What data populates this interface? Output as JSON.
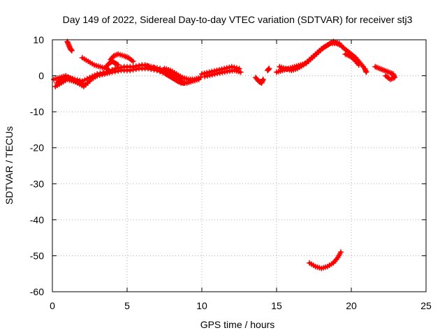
{
  "chart_data": {
    "type": "scatter",
    "title": "Day 149 of 2022, Sidereal Day-to-day VTEC variation (SDTVAR) for receiver stj3",
    "xlabel": "GPS time / hours",
    "ylabel": "SDTVAR / TECUs",
    "xlim": [
      0,
      25
    ],
    "ylim": [
      -60,
      10
    ],
    "xticks": [
      0,
      5,
      10,
      15,
      20,
      25
    ],
    "yticks": [
      10,
      0,
      -10,
      -20,
      -30,
      -40,
      -50,
      -60
    ],
    "grid": true,
    "marker": "+",
    "color": "#ff0000",
    "segments": [
      {
        "points": [
          [
            0.2,
            -3
          ],
          [
            0.6,
            -2
          ],
          [
            1.0,
            -1
          ],
          [
            1.4,
            -1.5
          ],
          [
            1.8,
            -2
          ],
          [
            2.2,
            -2.5
          ],
          [
            2.6,
            -1
          ],
          [
            3.0,
            0
          ],
          [
            3.5,
            0.5
          ],
          [
            4.0,
            1
          ],
          [
            4.6,
            1.5
          ],
          [
            5.2,
            1.5
          ],
          [
            5.8,
            2
          ],
          [
            6.4,
            2
          ],
          [
            7.0,
            1.5
          ],
          [
            7.6,
            0.5
          ],
          [
            8.0,
            -0.5
          ],
          [
            8.4,
            -1.5
          ],
          [
            8.8,
            -2
          ]
        ]
      },
      {
        "points": [
          [
            0.3,
            -2
          ],
          [
            0.7,
            -1
          ],
          [
            1.1,
            -0.5
          ],
          [
            1.5,
            -1
          ],
          [
            2.0,
            -1.5
          ],
          [
            2.5,
            -0.5
          ],
          [
            3.0,
            0.5
          ],
          [
            3.6,
            1
          ],
          [
            4.2,
            2
          ],
          [
            4.8,
            2.5
          ],
          [
            5.4,
            2.5
          ],
          [
            6.0,
            3
          ],
          [
            6.6,
            2.5
          ],
          [
            7.2,
            2
          ],
          [
            7.8,
            1
          ],
          [
            8.2,
            0
          ],
          [
            8.6,
            -1
          ]
        ]
      },
      {
        "points": [
          [
            0.1,
            -1
          ],
          [
            0.5,
            -0.5
          ],
          [
            0.9,
            0
          ],
          [
            1.3,
            -1
          ],
          [
            1.7,
            -2
          ],
          [
            2.1,
            -3
          ],
          [
            2.5,
            -1.5
          ]
        ]
      },
      {
        "points": [
          [
            1.0,
            9.5
          ],
          [
            1.1,
            8.5
          ],
          [
            1.2,
            7.5
          ],
          [
            1.3,
            7
          ]
        ]
      },
      {
        "points": [
          [
            2.0,
            5
          ],
          [
            2.4,
            4
          ],
          [
            2.8,
            3
          ],
          [
            3.2,
            2.5
          ],
          [
            3.6,
            2
          ],
          [
            3.8,
            1.5
          ]
        ]
      },
      {
        "points": [
          [
            3.9,
            4.5
          ],
          [
            4.1,
            5.5
          ],
          [
            4.4,
            6
          ],
          [
            4.8,
            5.5
          ],
          [
            5.1,
            5
          ],
          [
            5.4,
            4
          ]
        ]
      },
      {
        "points": [
          [
            3.6,
            2.5
          ],
          [
            3.8,
            3.5
          ],
          [
            4.0,
            4
          ],
          [
            4.2,
            3.5
          ],
          [
            4.4,
            3
          ]
        ]
      },
      {
        "points": [
          [
            6.2,
            3
          ],
          [
            6.6,
            2.5
          ],
          [
            7.0,
            2
          ],
          [
            7.4,
            1
          ],
          [
            7.8,
            0
          ],
          [
            8.2,
            -1
          ],
          [
            8.6,
            -2
          ],
          [
            9.0,
            -2
          ],
          [
            9.4,
            -1.5
          ],
          [
            9.8,
            -1
          ]
        ]
      },
      {
        "points": [
          [
            7.5,
            2
          ],
          [
            7.9,
            1.5
          ],
          [
            8.3,
            0.5
          ],
          [
            8.7,
            -0.5
          ],
          [
            9.1,
            -1
          ],
          [
            9.5,
            -1
          ],
          [
            9.9,
            -0.5
          ]
        ]
      },
      {
        "points": [
          [
            10.0,
            0.5
          ],
          [
            10.5,
            1
          ],
          [
            11.0,
            1.5
          ],
          [
            11.5,
            2
          ],
          [
            12.0,
            2.5
          ],
          [
            12.5,
            2
          ]
        ]
      },
      {
        "points": [
          [
            10.2,
            -0.2
          ],
          [
            10.7,
            0.3
          ],
          [
            11.2,
            0.8
          ],
          [
            11.7,
            1.2
          ],
          [
            12.2,
            1.5
          ],
          [
            12.6,
            1
          ]
        ]
      },
      {
        "points": [
          [
            13.6,
            -0.5
          ],
          [
            13.8,
            -1.5
          ],
          [
            14.0,
            -2
          ],
          [
            14.1,
            -1
          ]
        ]
      },
      {
        "points": [
          [
            14.4,
            1.5
          ],
          [
            14.5,
            2
          ]
        ]
      },
      {
        "points": [
          [
            15.0,
            1
          ],
          [
            15.4,
            1.5
          ],
          [
            15.8,
            2
          ],
          [
            16.2,
            2.5
          ],
          [
            16.6,
            3
          ],
          [
            17.0,
            3.5
          ],
          [
            17.4,
            5
          ],
          [
            17.8,
            6.5
          ],
          [
            18.2,
            8
          ],
          [
            18.6,
            9
          ],
          [
            19.0,
            9
          ],
          [
            19.3,
            8.5
          ]
        ]
      },
      {
        "points": [
          [
            15.2,
            2.5
          ],
          [
            15.6,
            2
          ],
          [
            16.0,
            1.5
          ],
          [
            16.4,
            2
          ],
          [
            16.8,
            3
          ],
          [
            17.2,
            4.5
          ],
          [
            17.6,
            6
          ],
          [
            18.0,
            7.5
          ],
          [
            18.4,
            8.5
          ],
          [
            18.8,
            9.5
          ],
          [
            19.2,
            9
          ]
        ]
      },
      {
        "points": [
          [
            19.4,
            8
          ],
          [
            19.7,
            7
          ],
          [
            20.0,
            6
          ],
          [
            20.3,
            5
          ],
          [
            20.6,
            3.5
          ],
          [
            20.9,
            2
          ],
          [
            21.0,
            1
          ]
        ]
      },
      {
        "points": [
          [
            19.6,
            6
          ],
          [
            19.9,
            5.5
          ],
          [
            20.2,
            4.5
          ],
          [
            20.5,
            3
          ]
        ]
      },
      {
        "points": [
          [
            21.6,
            2.5
          ],
          [
            21.9,
            2
          ],
          [
            22.2,
            1.5
          ],
          [
            22.5,
            1
          ],
          [
            22.8,
            0.5
          ],
          [
            22.9,
            -0.5
          ],
          [
            22.6,
            -1
          ],
          [
            22.3,
            0
          ]
        ]
      },
      {
        "points": [
          [
            17.2,
            -52
          ],
          [
            17.6,
            -53
          ],
          [
            18.0,
            -53.5
          ],
          [
            18.4,
            -53
          ],
          [
            18.8,
            -52
          ],
          [
            19.1,
            -50.5
          ],
          [
            19.3,
            -49
          ]
        ]
      }
    ]
  }
}
